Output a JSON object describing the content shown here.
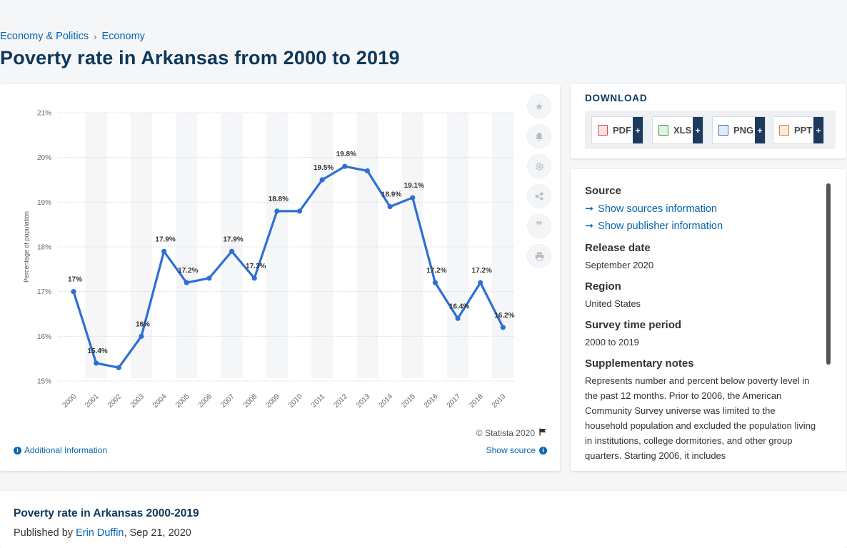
{
  "breadcrumb": {
    "item1": "Economy & Politics",
    "separator": "›",
    "item2": "Economy"
  },
  "page_title": "Poverty rate in Arkansas from 2000 to 2019",
  "chart_data": {
    "type": "line",
    "ylabel": "Percentage of population",
    "ylim": [
      15,
      21
    ],
    "y_ticks": [
      "15%",
      "16%",
      "17%",
      "18%",
      "19%",
      "20%",
      "21%"
    ],
    "categories": [
      "2000",
      "2001",
      "2002",
      "2003",
      "2004",
      "2005",
      "2006",
      "2007",
      "2008",
      "2009",
      "2010",
      "2011",
      "2012",
      "2013",
      "2014",
      "2015",
      "2016",
      "2017",
      "2018",
      "2019"
    ],
    "values": [
      17,
      15.4,
      15.3,
      16,
      17.9,
      17.2,
      17.3,
      17.9,
      17.3,
      18.8,
      18.8,
      19.5,
      19.8,
      19.7,
      18.9,
      19.1,
      17.2,
      16.4,
      17.2,
      16.2
    ],
    "labels": [
      "17%",
      "15.4%",
      "",
      "16%",
      "17.9%",
      "17.2%",
      "",
      "17.9%",
      "17.3%",
      "18.8%",
      "",
      "19.5%",
      "19.8%",
      "",
      "18.9%",
      "19.1%",
      "17.2%",
      "16.4%",
      "17.2%",
      "16.2%"
    ],
    "line_color": "#2e6fd4",
    "grid": true
  },
  "chart_footer": {
    "copyright": "© Statista 2020",
    "additional_info": "Additional Information",
    "show_source": "Show source"
  },
  "download": {
    "title": "DOWNLOAD",
    "buttons": [
      {
        "label": "PDF",
        "plus": "+"
      },
      {
        "label": "XLS",
        "plus": "+"
      },
      {
        "label": "PNG",
        "plus": "+"
      },
      {
        "label": "PPT",
        "plus": "+"
      }
    ]
  },
  "info": {
    "source_label": "Source",
    "show_sources": "Show sources information",
    "show_publisher": "Show publisher information",
    "release_label": "Release date",
    "release_value": "September 2020",
    "region_label": "Region",
    "region_value": "United States",
    "survey_label": "Survey time period",
    "survey_value": "2000 to 2019",
    "notes_label": "Supplementary notes",
    "notes_value": "Represents number and percent below poverty level in the past 12 months. Prior to 2006, the American Community Survey universe was limited to the household population and excluded the population living in institutions, college dormitories, and other group quarters. Starting 2006, it includes"
  },
  "publication": {
    "title": "Poverty rate in Arkansas 2000-2019",
    "published_by": "Published by",
    "author": "Erin Duffin",
    "date": ", Sep 21, 2020"
  }
}
